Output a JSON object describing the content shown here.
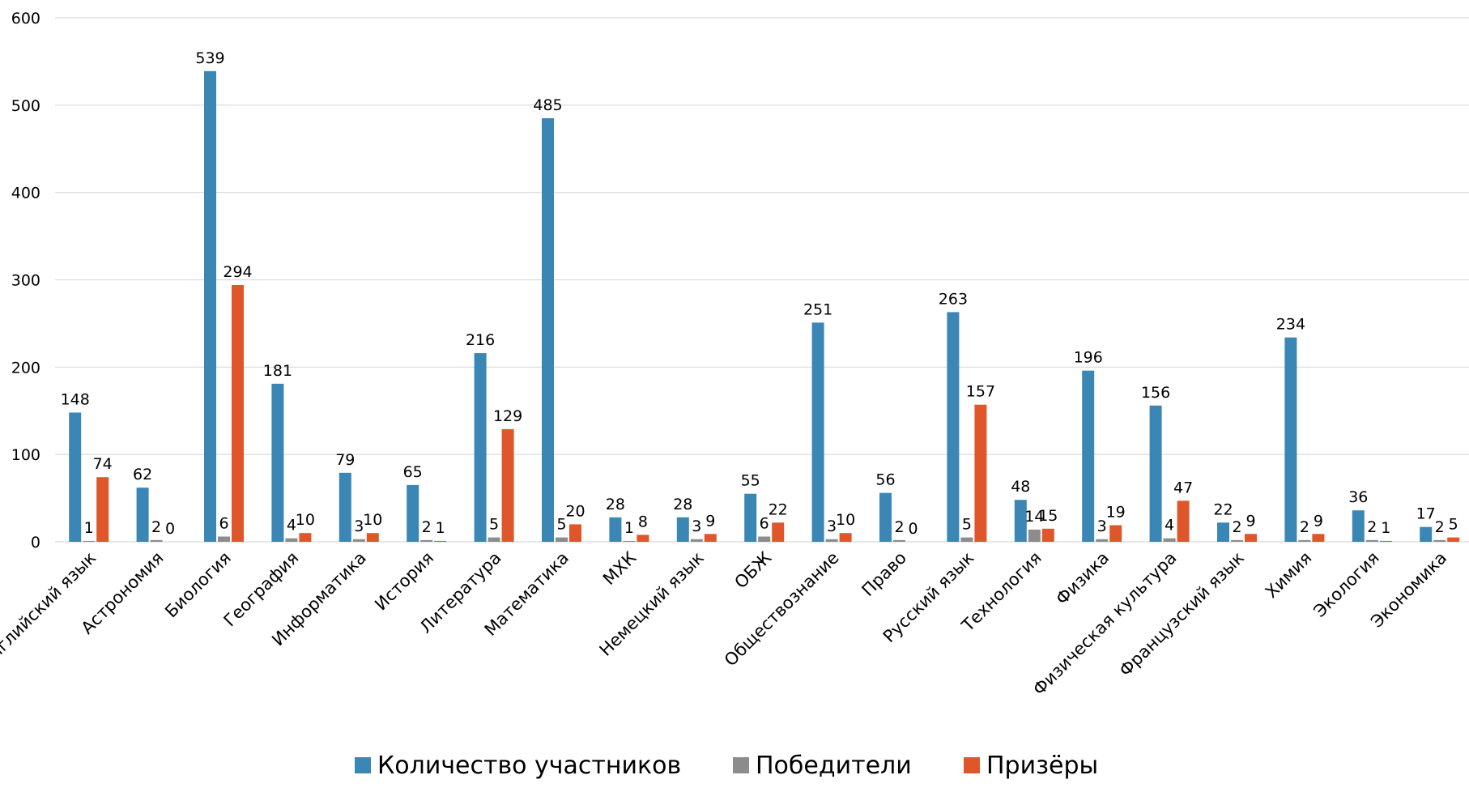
{
  "chart_data": {
    "type": "bar",
    "ylim": [
      0,
      600
    ],
    "yticks": [
      0,
      100,
      200,
      300,
      400,
      500,
      600
    ],
    "grid": true,
    "legend_position": "bottom",
    "categories": [
      "Английский язык",
      "Астрономия",
      "Биология",
      "География",
      "Информатика",
      "История",
      "Литература",
      "Математика",
      "МХК",
      "Немецкий язык",
      "ОБЖ",
      "Обществознание",
      "Право",
      "Русский язык",
      "Технология",
      "Физика",
      "Физическая культура",
      "Французский язык",
      "Химия",
      "Экология",
      "Экономика"
    ],
    "series": [
      {
        "name": "Количество участников",
        "color": "#3a87b5",
        "values": [
          148,
          62,
          539,
          181,
          79,
          65,
          216,
          485,
          28,
          28,
          55,
          251,
          56,
          263,
          48,
          196,
          156,
          22,
          234,
          36,
          17
        ]
      },
      {
        "name": "Победители",
        "color": "#8c8c8c",
        "values": [
          1,
          2,
          6,
          4,
          3,
          2,
          5,
          5,
          1,
          3,
          6,
          3,
          2,
          5,
          14,
          3,
          4,
          2,
          2,
          2,
          2
        ]
      },
      {
        "name": "Призёры",
        "color": "#e0562b",
        "values": [
          74,
          0,
          294,
          10,
          10,
          1,
          129,
          20,
          8,
          9,
          22,
          10,
          0,
          157,
          15,
          19,
          47,
          9,
          9,
          1,
          5
        ]
      }
    ]
  }
}
